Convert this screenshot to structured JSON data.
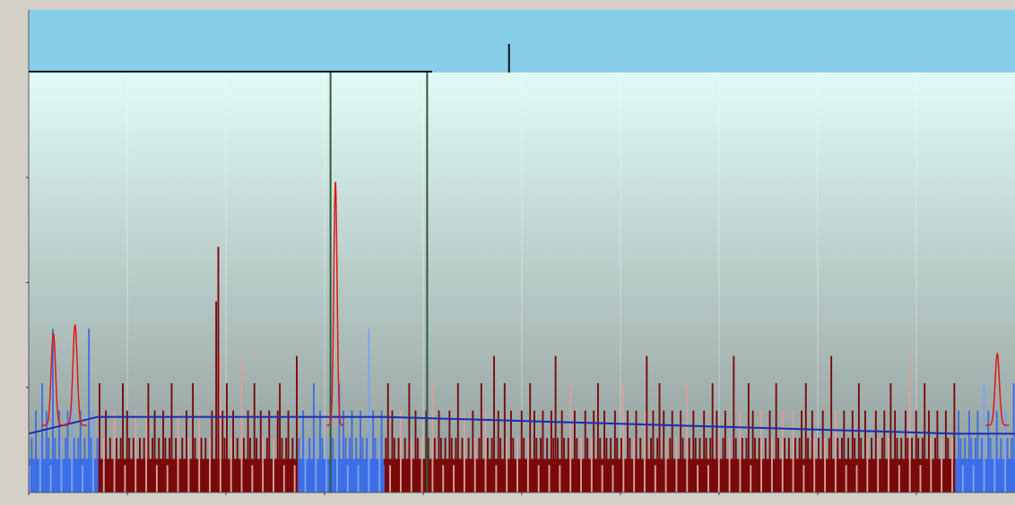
{
  "colors": {
    "window_bg": "#d4d0c8",
    "overview_bg": "#87ceeb",
    "plot_top": "#e0fbf6",
    "plot_bottom": "#8e9997",
    "bar_dark": "#7a0a0a",
    "bar_light": "#d9a0a0",
    "bar_blue": "#3d6ee6",
    "bar_blue_light": "#7da2f2",
    "baseline": "#1a2bb5",
    "fit_curve": "#e01818",
    "marker_line": "#2e5a3c"
  },
  "chart_data": [
    {
      "type": "bar",
      "panel": "overview",
      "y_tick_labels": [
        "",
        ""
      ],
      "spike_at_x": 0.487,
      "values_note": ""
    },
    {
      "type": "bar",
      "panel": "main",
      "title": "",
      "xlabel": "",
      "ylabel": "",
      "x_tick_labels": [
        "",
        "",
        "",
        "",
        "",
        "",
        "",
        "",
        "",
        ""
      ],
      "y_tick_labels": [
        "",
        "",
        ""
      ],
      "grid": true,
      "vertical_markers_x": [
        0.306,
        0.404
      ],
      "blue_regions": [
        [
          0.0,
          0.069
        ],
        [
          0.273,
          0.36
        ],
        [
          0.939,
          1.0
        ]
      ],
      "baseline": [
        [
          0.0,
          0.14
        ],
        [
          0.07,
          0.18
        ],
        [
          0.36,
          0.18
        ],
        [
          0.94,
          0.14
        ],
        [
          1.0,
          0.14
        ]
      ],
      "fit_peaks": [
        {
          "x": 0.025,
          "height": 0.22,
          "width": 0.004
        },
        {
          "x": 0.047,
          "height": 0.24,
          "width": 0.004
        },
        {
          "x": 0.311,
          "height": 0.58,
          "width": 0.003
        },
        {
          "x": 0.982,
          "height": 0.17,
          "width": 0.004
        }
      ],
      "peak_labels": [
        "",
        "",
        ""
      ],
      "counts": [
        1,
        2,
        1,
        3,
        1,
        2,
        4,
        1,
        3,
        2,
        1,
        6,
        2,
        1,
        3,
        2,
        1,
        2,
        3,
        1,
        4,
        2,
        1,
        2,
        3,
        1,
        2,
        1,
        6,
        2,
        3,
        1,
        2,
        4,
        1,
        2,
        3,
        1,
        2,
        1,
        3,
        2,
        1,
        2,
        4,
        1,
        3,
        2,
        1,
        2,
        3,
        1,
        2,
        1,
        2,
        3,
        4,
        1,
        2,
        3,
        1,
        2,
        1,
        3,
        2,
        1,
        2,
        4,
        1,
        2,
        3,
        1,
        2,
        1,
        3,
        2,
        1,
        4,
        2,
        1,
        3,
        2,
        1,
        2,
        1,
        2,
        3,
        1,
        7,
        9,
        5,
        3,
        2,
        4,
        1,
        2,
        3,
        1,
        2,
        1,
        5,
        2,
        1,
        3,
        2,
        1,
        4,
        2,
        1,
        3,
        2,
        1,
        2,
        3,
        1,
        2,
        1,
        3,
        4,
        2,
        1,
        2,
        3,
        1,
        2,
        1,
        5,
        2,
        1,
        3,
        2,
        1,
        2,
        1,
        4,
        2,
        1,
        3,
        2,
        1,
        2,
        1,
        3,
        2,
        1,
        2,
        4,
        1,
        3,
        2,
        1,
        2,
        3,
        1,
        2,
        1,
        3,
        2,
        1,
        2,
        6,
        1,
        3,
        2,
        1,
        2,
        3,
        1,
        2,
        4,
        1,
        3,
        2,
        1,
        2,
        3,
        1,
        2,
        1,
        4,
        2,
        1,
        3,
        2,
        1,
        2,
        1,
        3,
        2,
        1,
        4,
        2,
        1,
        3,
        2,
        1,
        2,
        1,
        3,
        2,
        1,
        2,
        4,
        1,
        2,
        3,
        1,
        2,
        1,
        3,
        2,
        1,
        2,
        4,
        1,
        3,
        2,
        1,
        2,
        5,
        1,
        3,
        2,
        1,
        4,
        2,
        1,
        3,
        2,
        1,
        2,
        1,
        3,
        2,
        1,
        2,
        4,
        1,
        3,
        2,
        1,
        2,
        3,
        1,
        2,
        1,
        3,
        2,
        5,
        2,
        1,
        3,
        2,
        1,
        2,
        4,
        1,
        3,
        2,
        1,
        2,
        1,
        3,
        2,
        1,
        2,
        3,
        1,
        4,
        2,
        1,
        3,
        2,
        1,
        2,
        1,
        3,
        2,
        1,
        2,
        4,
        1,
        3,
        2,
        1,
        2,
        3,
        1,
        2,
        1,
        3,
        5,
        1,
        2,
        3,
        1,
        2,
        4,
        1,
        3,
        2,
        1,
        2,
        3,
        1,
        2,
        1,
        3,
        2,
        1,
        4,
        2,
        1,
        3,
        2,
        1,
        2,
        1,
        3,
        2,
        1,
        2,
        4,
        1,
        3,
        2,
        1,
        2,
        3,
        1,
        2,
        1,
        5,
        2,
        1,
        3,
        2,
        1,
        2,
        4,
        1,
        3,
        2,
        1,
        2,
        3,
        1,
        2,
        1,
        3,
        2,
        1,
        4,
        2,
        1,
        3,
        2,
        1,
        2,
        1,
        3,
        2,
        1,
        2,
        3,
        1,
        4,
        2,
        1,
        3,
        2,
        1,
        2,
        1,
        3,
        2,
        1,
        2,
        5,
        1,
        3,
        2,
        1,
        2,
        3,
        1,
        2,
        1,
        3,
        2,
        1,
        4,
        2,
        1,
        3,
        2,
        1,
        2,
        1,
        3,
        2,
        1,
        2,
        3,
        1,
        2,
        4,
        1,
        3,
        2,
        1,
        2,
        1,
        3,
        2,
        5,
        2,
        1,
        3,
        2,
        1,
        2,
        4,
        1,
        3,
        2,
        1,
        2,
        3,
        1,
        2,
        1,
        3,
        2,
        1,
        2,
        4,
        1,
        3,
        2,
        1,
        2,
        1,
        3,
        2,
        1,
        2,
        3,
        1,
        2,
        4,
        1,
        3,
        2,
        1,
        2,
        3,
        1,
        2,
        1,
        3,
        2,
        1,
        2,
        4
      ]
    }
  ]
}
